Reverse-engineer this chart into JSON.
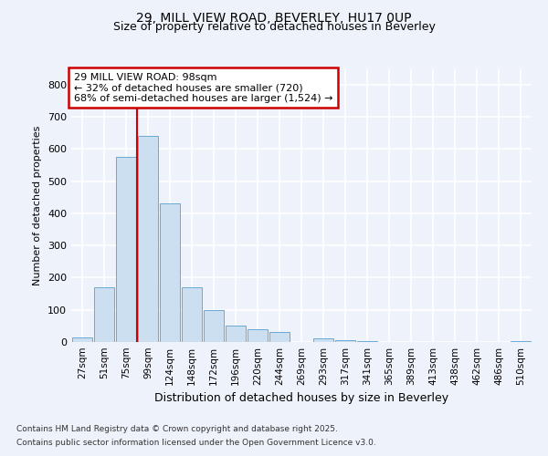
{
  "title1": "29, MILL VIEW ROAD, BEVERLEY, HU17 0UP",
  "title2": "Size of property relative to detached houses in Beverley",
  "xlabel": "Distribution of detached houses by size in Beverley",
  "ylabel": "Number of detached properties",
  "categories": [
    "27sqm",
    "51sqm",
    "75sqm",
    "99sqm",
    "124sqm",
    "148sqm",
    "172sqm",
    "196sqm",
    "220sqm",
    "244sqm",
    "269sqm",
    "293sqm",
    "317sqm",
    "341sqm",
    "365sqm",
    "389sqm",
    "413sqm",
    "438sqm",
    "462sqm",
    "486sqm",
    "510sqm"
  ],
  "values": [
    15,
    170,
    575,
    640,
    430,
    170,
    100,
    50,
    40,
    32,
    0,
    10,
    5,
    2,
    1,
    1,
    1,
    0,
    0,
    0,
    4
  ],
  "bar_color": "#ccdff0",
  "bar_edge_color": "#6aaad4",
  "vline_x_index": 3,
  "annotation_text": "29 MILL VIEW ROAD: 98sqm\n← 32% of detached houses are smaller (720)\n68% of semi-detached houses are larger (1,524) →",
  "annotation_box_facecolor": "#ffffff",
  "annotation_box_edgecolor": "#cc0000",
  "vline_color": "#cc0000",
  "background_color": "#eef2fa",
  "plot_bg_color": "#eef2fa",
  "grid_color": "#ffffff",
  "ylim": [
    0,
    850
  ],
  "yticks": [
    0,
    100,
    200,
    300,
    400,
    500,
    600,
    700,
    800
  ],
  "footer_line1": "Contains HM Land Registry data © Crown copyright and database right 2025.",
  "footer_line2": "Contains public sector information licensed under the Open Government Licence v3.0."
}
